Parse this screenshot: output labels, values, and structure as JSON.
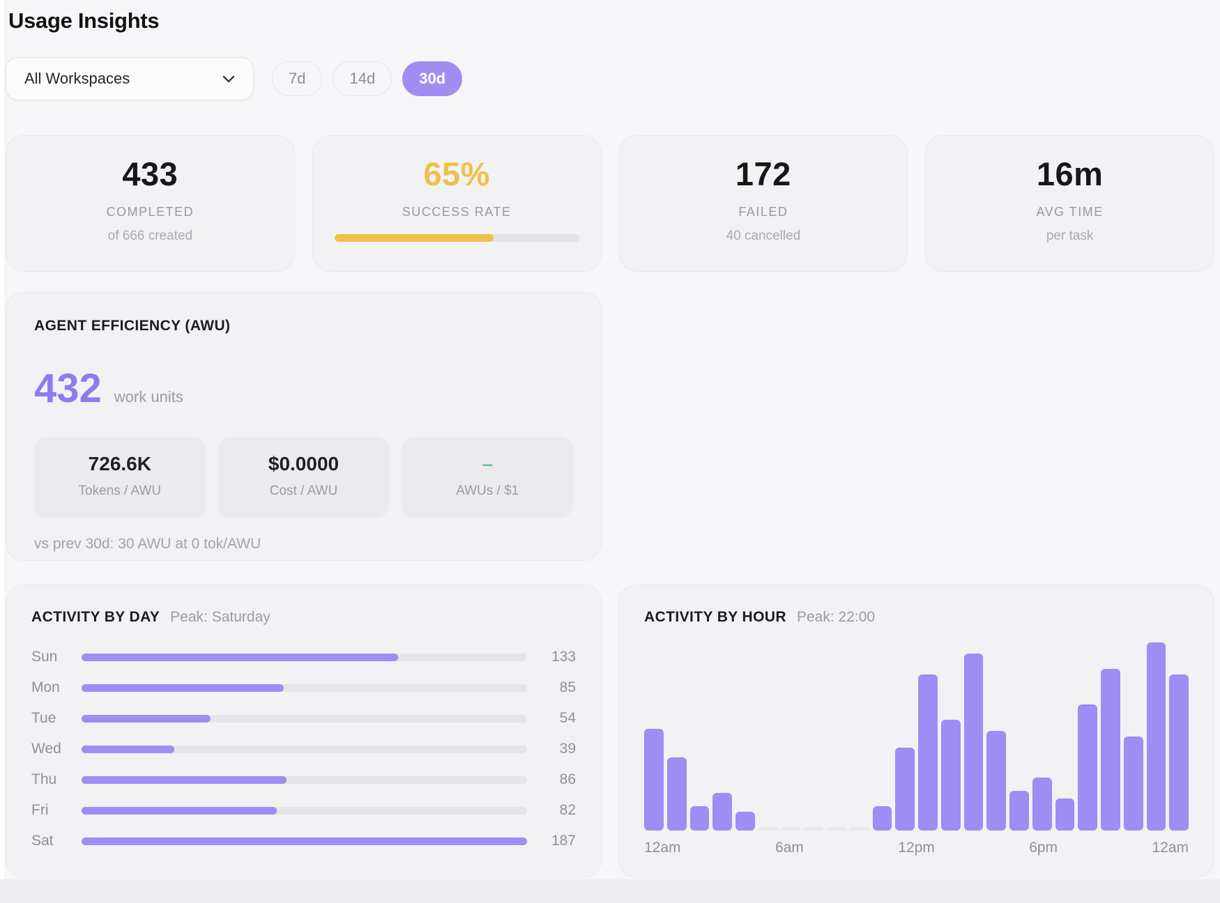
{
  "page": {
    "title": "Usage Insights"
  },
  "controls": {
    "workspace_select": {
      "value": "All Workspaces",
      "chevron_icon": "chevron-down-icon"
    },
    "range_pills": [
      {
        "label": "7d",
        "selected": false
      },
      {
        "label": "14d",
        "selected": false
      },
      {
        "label": "30d",
        "selected": true
      }
    ]
  },
  "stat_cards": [
    {
      "value": "433",
      "label": "COMPLETED",
      "sub": "of 666 created"
    },
    {
      "value": "65%",
      "label": "SUCCESS RATE",
      "accent": "yellow",
      "progress_pct": 65
    },
    {
      "value": "172",
      "label": "FAILED",
      "sub": "40 cancelled"
    },
    {
      "value": "16m",
      "label": "AVG TIME",
      "sub": "per task"
    }
  ],
  "efficiency": {
    "title": "AGENT EFFICIENCY (AWU)",
    "value": "432",
    "unit": "work units",
    "metrics": [
      {
        "value": "726.6K",
        "label": "Tokens / AWU"
      },
      {
        "value": "$0.0000",
        "label": "Cost / AWU"
      },
      {
        "value": "–",
        "label": "AWUs / $1",
        "highlight": "green"
      }
    ],
    "comparison": "vs prev 30d: 30 AWU at 0 tok/AWU"
  },
  "chart_data": [
    {
      "type": "bar",
      "orientation": "horizontal",
      "title": "ACTIVITY BY DAY",
      "subtitle": "Peak: Saturday",
      "categories": [
        "Sun",
        "Mon",
        "Tue",
        "Wed",
        "Thu",
        "Fri",
        "Sat"
      ],
      "values": [
        133,
        85,
        54,
        39,
        86,
        82,
        187
      ],
      "xlim": [
        0,
        187
      ],
      "value_labels_shown": true,
      "peak_category": "Saturday"
    },
    {
      "type": "bar",
      "orientation": "vertical",
      "title": "ACTIVITY BY HOUR",
      "subtitle": "Peak: 22:00",
      "x_hours": [
        0,
        1,
        2,
        3,
        4,
        5,
        6,
        7,
        8,
        9,
        10,
        11,
        12,
        13,
        14,
        15,
        16,
        17,
        18,
        19,
        20,
        21,
        22,
        23
      ],
      "values": [
        54,
        39,
        13,
        20,
        10,
        0,
        0,
        0,
        0,
        0,
        13,
        44,
        83,
        59,
        94,
        53,
        21,
        28,
        17,
        67,
        86,
        50,
        100,
        83
      ],
      "values_unit": "relative_peak_100",
      "peak_hour": "22:00",
      "x_tick_labels": [
        "12am",
        "6am",
        "12pm",
        "6pm",
        "12am"
      ],
      "ylim": [
        0,
        100
      ]
    }
  ],
  "colors": {
    "accent_purple": "#9e8df2",
    "accent_purple_deep": "#8d7bef",
    "pill_purple": "#a18df2",
    "accent_yellow": "#ecc14d",
    "accent_green": "#5ecf96",
    "track_gray": "#e5e5e9",
    "zero_bar_gray": "#e9e9ec"
  }
}
